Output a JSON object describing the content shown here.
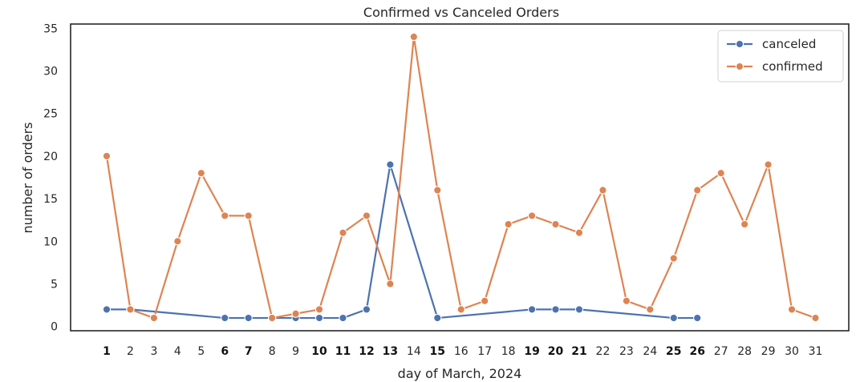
{
  "chart_data": {
    "type": "line",
    "title": "Confirmed vs Canceled Orders",
    "xlabel": "day of March, 2024",
    "ylabel": "number of orders",
    "ylim": [
      -0.5,
      35.5
    ],
    "yticks": [
      0,
      5,
      10,
      15,
      20,
      25,
      30,
      35
    ],
    "categories": [
      1,
      2,
      3,
      4,
      5,
      6,
      7,
      8,
      9,
      10,
      11,
      12,
      13,
      14,
      15,
      16,
      17,
      18,
      19,
      20,
      21,
      22,
      23,
      24,
      25,
      26,
      27,
      28,
      29,
      30,
      31
    ],
    "bold_ticks": [
      1,
      6,
      7,
      10,
      11,
      12,
      13,
      15,
      19,
      20,
      21,
      25,
      26
    ],
    "grid": false,
    "legend_position": "top-right",
    "series": [
      {
        "name": "canceled",
        "color": "#4c72b0",
        "x": [
          1,
          2,
          6,
          7,
          8,
          9,
          10,
          11,
          12,
          13,
          15,
          19,
          20,
          21,
          25,
          26
        ],
        "y": [
          2,
          2,
          1,
          1,
          1,
          1,
          1,
          1,
          2,
          19,
          1,
          2,
          2,
          2,
          1,
          1
        ]
      },
      {
        "name": "confirmed",
        "color": "#dd8452",
        "x": [
          1,
          2,
          3,
          4,
          5,
          6,
          7,
          8,
          9,
          10,
          11,
          12,
          13,
          14,
          15,
          16,
          17,
          18,
          19,
          20,
          21,
          22,
          23,
          24,
          25,
          26,
          27,
          28,
          29,
          30,
          31
        ],
        "y": [
          20,
          2,
          1,
          10,
          18,
          13,
          13,
          1,
          1.5,
          2,
          11,
          13,
          5,
          34,
          16,
          2,
          3,
          12,
          13,
          12,
          11,
          16,
          3,
          2,
          8,
          16,
          18,
          12,
          19,
          2,
          1
        ]
      }
    ]
  }
}
